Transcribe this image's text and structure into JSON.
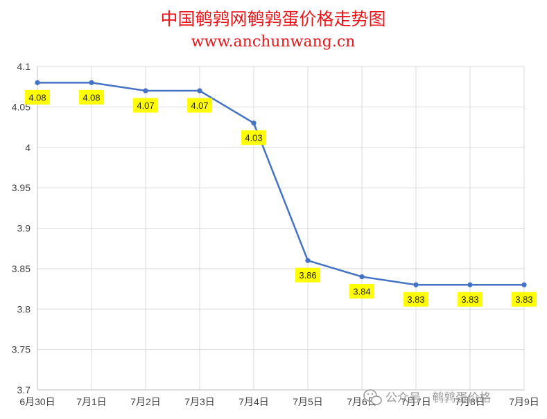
{
  "chart_data": {
    "type": "line",
    "title": "中国鹌鹑网鹌鹑蛋价格走势图",
    "subtitle": "www.anchunwang.cn",
    "xlabel": "",
    "ylabel": "",
    "categories": [
      "6月30日",
      "7月1日",
      "7月2日",
      "7月3日",
      "7月4日",
      "7月5日",
      "7月6日",
      "7月7日",
      "7月8日",
      "7月9日"
    ],
    "series": [
      {
        "values": [
          4.08,
          4.08,
          4.07,
          4.07,
          4.03,
          3.86,
          3.84,
          3.83,
          3.83,
          3.83
        ]
      }
    ],
    "data_labels": [
      "4.08",
      "4.08",
      "4.07",
      "4.07",
      "4.03",
      "3.86",
      "3.84",
      "3.83",
      "3.83",
      "3.83"
    ],
    "ylim": [
      3.7,
      4.1
    ],
    "yticks": [
      "3.7",
      "3.75",
      "3.8",
      "3.85",
      "3.9",
      "3.95",
      "4",
      "4.05",
      "4.1"
    ],
    "grid": true,
    "legend": "none",
    "colors": {
      "title": "#e8151b",
      "line": "#4472c4",
      "grid": "#d9d9d9",
      "label_bg": "#ffff00"
    }
  },
  "watermark": {
    "icon": "wechat-icon",
    "text": "公众号 · 鹌鹑蛋价格"
  }
}
